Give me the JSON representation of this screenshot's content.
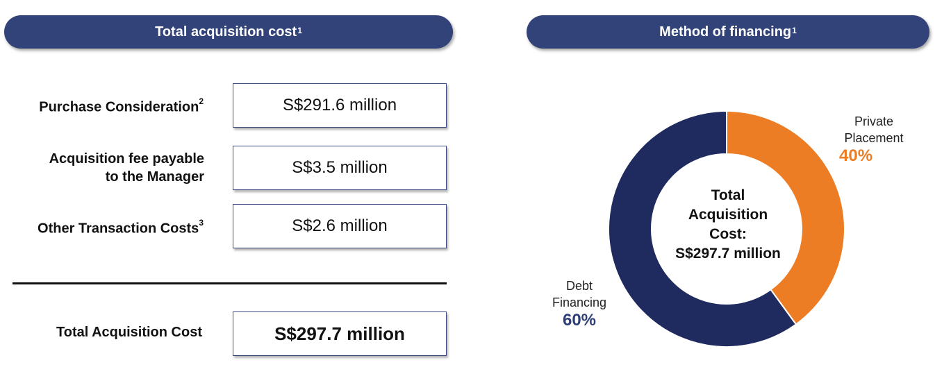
{
  "left_panel": {
    "header_title": "Total acquisition cost",
    "header_footnote": "1",
    "rows": [
      {
        "label": "Purchase Consideration",
        "footnote": "2",
        "value": "S$291.6 million"
      },
      {
        "label_line1": "Acquisition  fee payable",
        "label_line2": "to the Manager",
        "value": "S$3.5 million"
      },
      {
        "label": "Other Transaction Costs",
        "footnote": "3",
        "value": "S$2.6 million"
      }
    ],
    "total": {
      "label": "Total Acquisition  Cost",
      "value": "S$297.7 million"
    }
  },
  "right_panel": {
    "header_title": "Method of financing",
    "header_footnote": "1",
    "center_text": [
      "Total",
      "Acquisition",
      "Cost:",
      "S$297.7 million"
    ]
  },
  "chart_data": {
    "type": "pie",
    "title": "Method of financing",
    "donut": true,
    "total_label": "Total Acquisition Cost: S$297.7 million",
    "slices": [
      {
        "label_lines": [
          "Private",
          "Placement"
        ],
        "value": 40,
        "value_label": "40%",
        "color": "#ed7d24"
      },
      {
        "label_lines": [
          "Debt",
          "Financing"
        ],
        "value": 60,
        "value_label": "60%",
        "color": "#1f2b5e"
      }
    ]
  },
  "colors": {
    "header_bg": "#32437a",
    "box_border": "#3a4a7e",
    "private_placement": "#ed7d24",
    "debt_financing": "#1f2b5e"
  }
}
